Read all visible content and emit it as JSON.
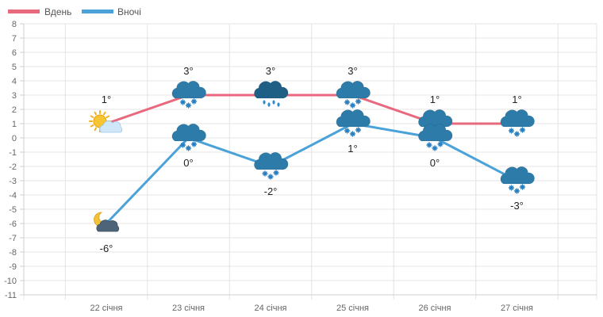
{
  "chart_data": {
    "type": "line",
    "categories": [
      "22 січня",
      "23 січня",
      "24 січня",
      "25 січня",
      "26 січня",
      "27 січня"
    ],
    "series": [
      {
        "name": "Вдень",
        "color": "#e8697d",
        "values": [
          1,
          3,
          3,
          3,
          1,
          1
        ],
        "labels": [
          "1°",
          "3°",
          "3°",
          "3°",
          "1°",
          "1°"
        ],
        "icons": [
          "sun-cloud-icon",
          "cloud-snow-icon",
          "dark-cloud-rain-icon",
          "cloud-snow-icon",
          "cloud-snow-icon",
          "cloud-snow-icon"
        ]
      },
      {
        "name": "Вночі",
        "color": "#4aa2d9",
        "values": [
          -6,
          0,
          -2,
          1,
          0,
          -3
        ],
        "labels": [
          "-6°",
          "0°",
          "-2°",
          "1°",
          "0°",
          "-3°"
        ],
        "icons": [
          "moon-cloud-icon",
          "cloud-snow-icon",
          "cloud-snow-icon",
          "cloud-snow-icon",
          "cloud-snow-icon",
          "cloud-snow-icon"
        ]
      }
    ],
    "ylim": [
      -11,
      8
    ],
    "yticks": [
      8,
      7,
      6,
      5,
      4,
      3,
      2,
      1,
      0,
      -1,
      -2,
      -3,
      -4,
      -5,
      -6,
      -7,
      -8,
      -9,
      -10,
      -11
    ],
    "grid": true,
    "legend": "top-left"
  }
}
